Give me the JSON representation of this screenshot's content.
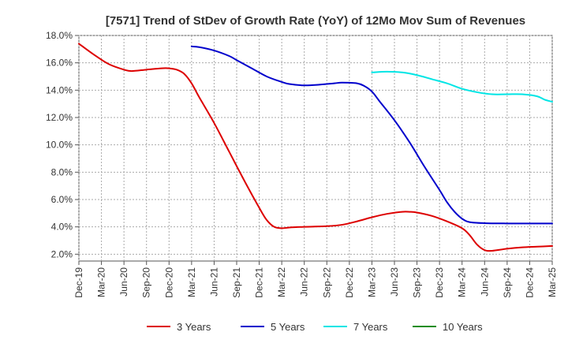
{
  "chart_data": {
    "type": "line",
    "title": "[7571]  Trend of StDev of Growth Rate (YoY) of 12Mo Mov Sum of Revenues",
    "xlabel": "",
    "ylabel": "",
    "ylim": [
      1.5,
      18.0
    ],
    "yticks": [
      2.0,
      4.0,
      6.0,
      8.0,
      10.0,
      12.0,
      14.0,
      16.0,
      18.0
    ],
    "ytick_labels": [
      "2.0%",
      "4.0%",
      "6.0%",
      "8.0%",
      "10.0%",
      "12.0%",
      "14.0%",
      "16.0%",
      "18.0%"
    ],
    "x_tick_labels": [
      "Dec-19",
      "Mar-20",
      "Jun-20",
      "Sep-20",
      "Dec-20",
      "Mar-21",
      "Jun-21",
      "Sep-21",
      "Dec-21",
      "Mar-22",
      "Jun-22",
      "Sep-22",
      "Dec-22",
      "Mar-23",
      "Jun-23",
      "Sep-23",
      "Dec-23",
      "Mar-24",
      "Jun-24",
      "Sep-24",
      "Dec-24",
      "Mar-25"
    ],
    "x_range_months": [
      0,
      63
    ],
    "grid": true,
    "legend_position": "bottom",
    "series": [
      {
        "name": "3 Years",
        "color": "#dd0000",
        "points": [
          [
            0,
            17.4
          ],
          [
            2,
            16.6
          ],
          [
            4,
            15.9
          ],
          [
            6,
            15.5
          ],
          [
            7,
            15.4
          ],
          [
            9,
            15.5
          ],
          [
            11,
            15.6
          ],
          [
            12,
            15.6
          ],
          [
            13,
            15.5
          ],
          [
            14,
            15.2
          ],
          [
            15,
            14.5
          ],
          [
            16,
            13.5
          ],
          [
            18,
            11.6
          ],
          [
            20,
            9.5
          ],
          [
            22,
            7.4
          ],
          [
            24,
            5.4
          ],
          [
            25,
            4.5
          ],
          [
            26,
            4.0
          ],
          [
            27,
            3.9
          ],
          [
            28,
            3.95
          ],
          [
            30,
            4.0
          ],
          [
            33,
            4.05
          ],
          [
            35,
            4.15
          ],
          [
            37,
            4.4
          ],
          [
            39,
            4.7
          ],
          [
            41,
            4.95
          ],
          [
            43,
            5.1
          ],
          [
            44,
            5.1
          ],
          [
            45,
            5.05
          ],
          [
            47,
            4.8
          ],
          [
            49,
            4.4
          ],
          [
            51,
            3.9
          ],
          [
            52,
            3.4
          ],
          [
            53,
            2.7
          ],
          [
            54,
            2.3
          ],
          [
            55,
            2.25
          ],
          [
            57,
            2.4
          ],
          [
            59,
            2.5
          ],
          [
            61,
            2.55
          ],
          [
            63,
            2.6
          ]
        ]
      },
      {
        "name": "5 Years",
        "color": "#0000cc",
        "points": [
          [
            15,
            17.2
          ],
          [
            16,
            17.15
          ],
          [
            18,
            16.9
          ],
          [
            20,
            16.5
          ],
          [
            21,
            16.2
          ],
          [
            23,
            15.6
          ],
          [
            25,
            15.0
          ],
          [
            27,
            14.6
          ],
          [
            28,
            14.45
          ],
          [
            30,
            14.35
          ],
          [
            32,
            14.4
          ],
          [
            34,
            14.5
          ],
          [
            35,
            14.55
          ],
          [
            37,
            14.5
          ],
          [
            38,
            14.3
          ],
          [
            39,
            13.9
          ],
          [
            40,
            13.2
          ],
          [
            42,
            11.8
          ],
          [
            44,
            10.2
          ],
          [
            46,
            8.4
          ],
          [
            48,
            6.7
          ],
          [
            49,
            5.8
          ],
          [
            50,
            5.1
          ],
          [
            51,
            4.6
          ],
          [
            52,
            4.35
          ],
          [
            54,
            4.27
          ],
          [
            57,
            4.25
          ],
          [
            60,
            4.25
          ],
          [
            63,
            4.25
          ]
        ]
      },
      {
        "name": "7 Years",
        "color": "#00e5e5",
        "points": [
          [
            39,
            15.3
          ],
          [
            41,
            15.35
          ],
          [
            43,
            15.3
          ],
          [
            45,
            15.1
          ],
          [
            47,
            14.8
          ],
          [
            49,
            14.5
          ],
          [
            51,
            14.1
          ],
          [
            53,
            13.85
          ],
          [
            55,
            13.7
          ],
          [
            57,
            13.7
          ],
          [
            59,
            13.7
          ],
          [
            61,
            13.55
          ],
          [
            62,
            13.3
          ],
          [
            63,
            13.15
          ]
        ]
      },
      {
        "name": "10 Years",
        "color": "#1a8c1a",
        "points": []
      }
    ]
  }
}
